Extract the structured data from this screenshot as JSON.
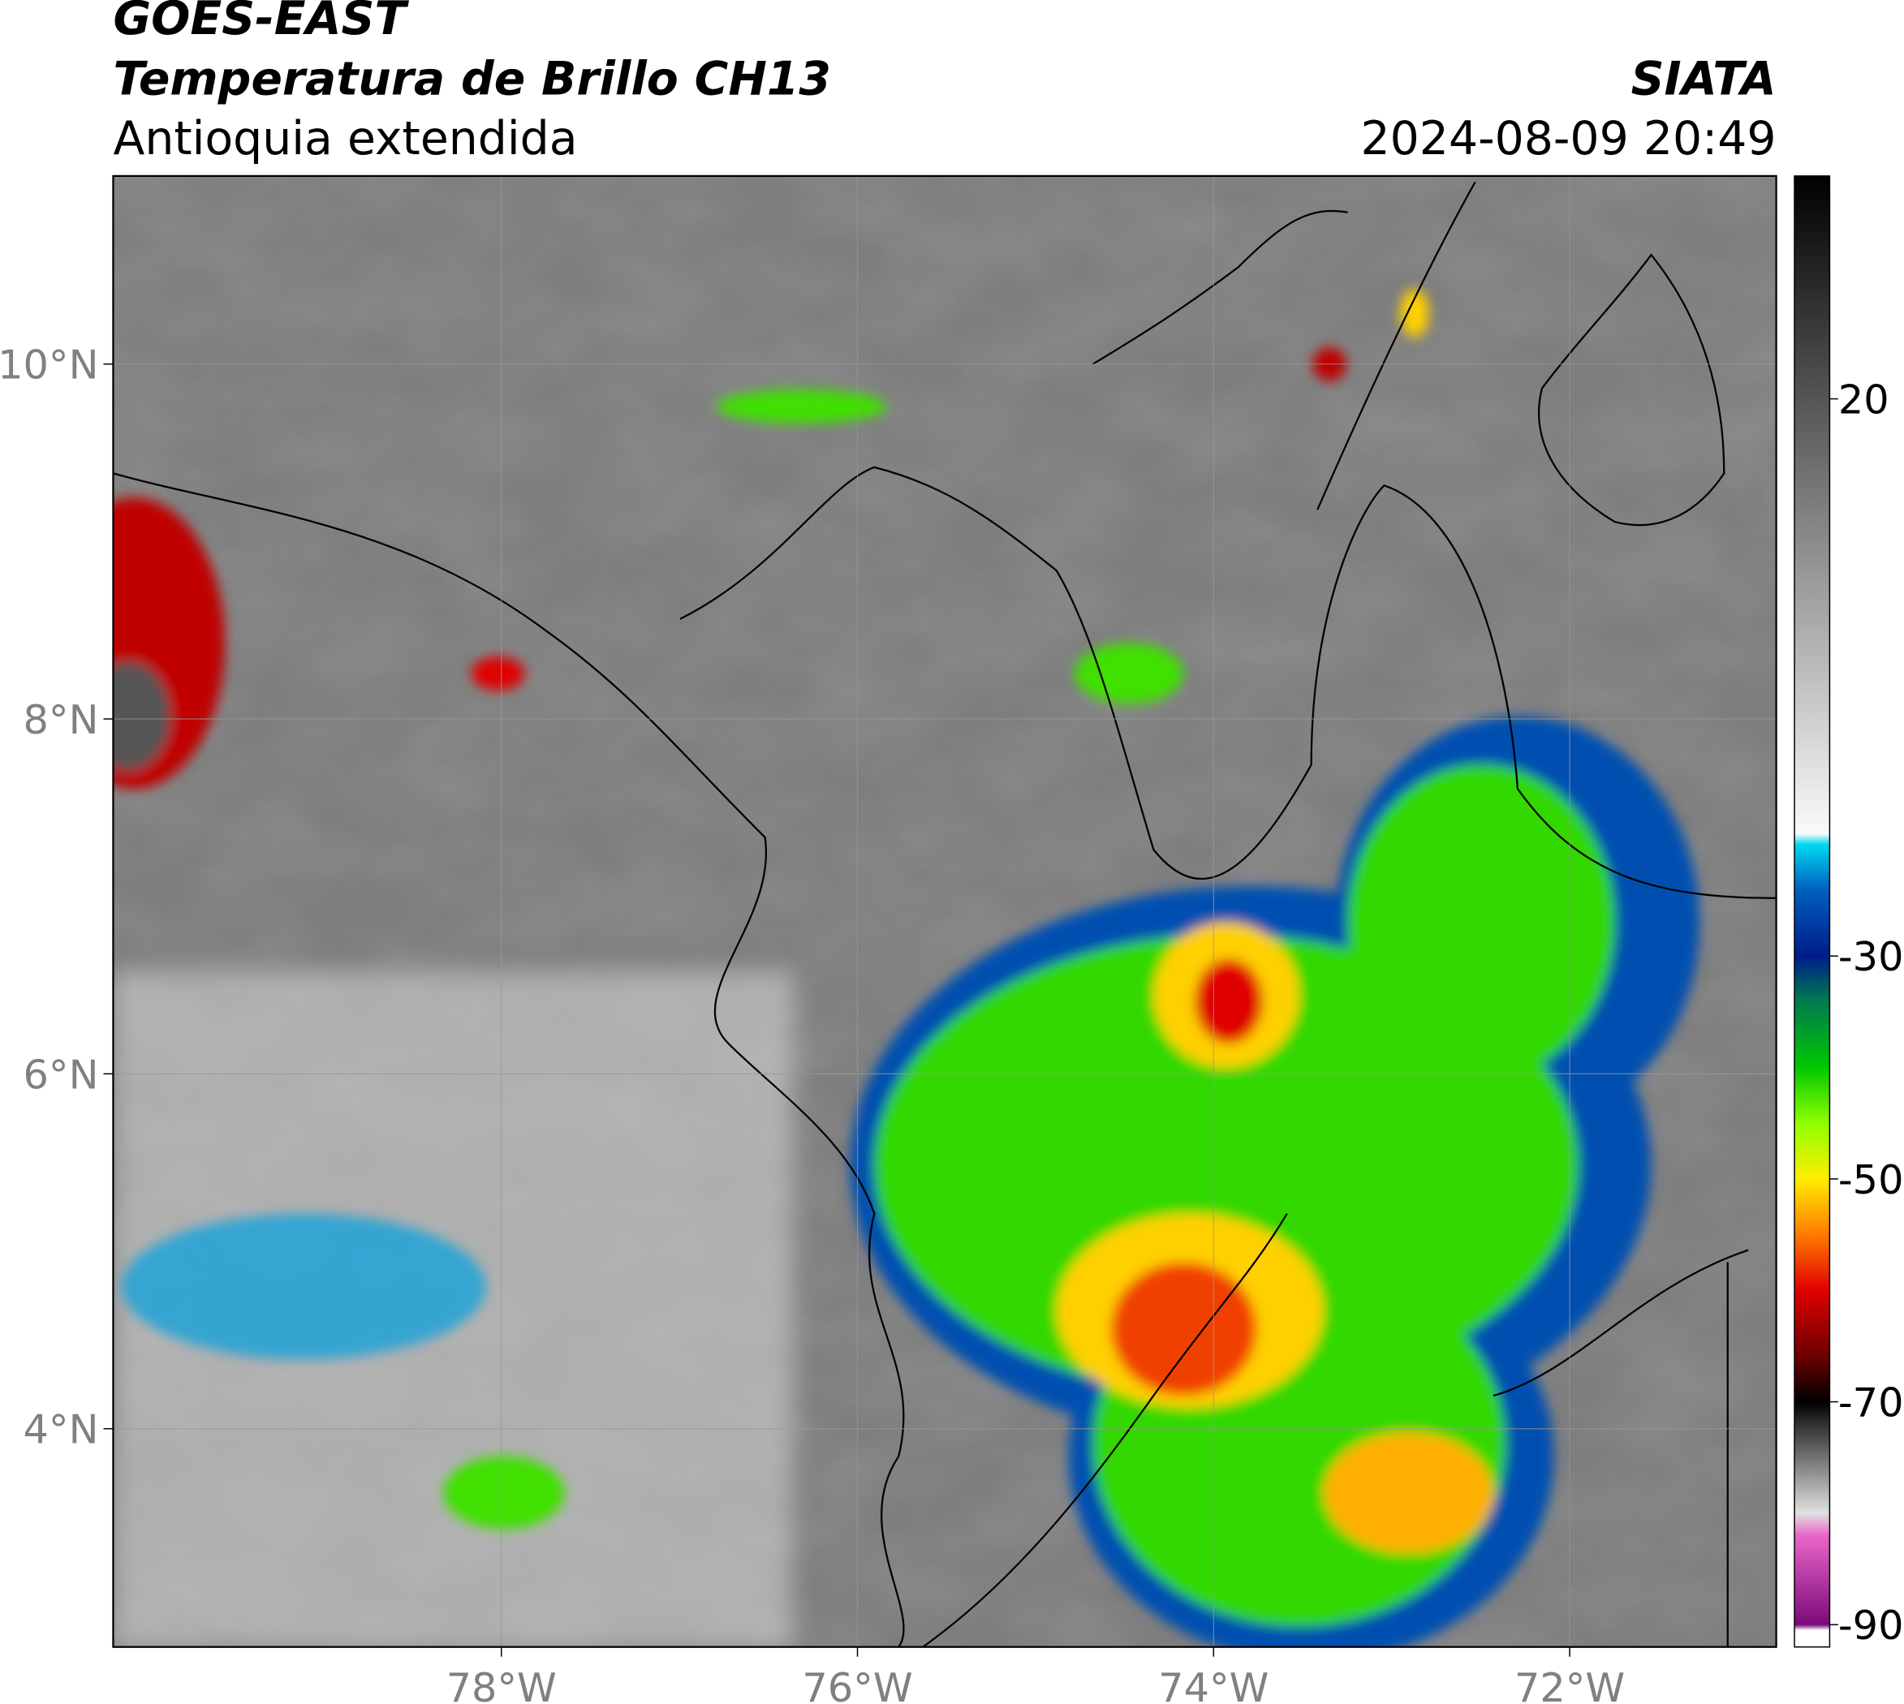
{
  "header": {
    "title": "GOES-EAST",
    "subtitle": "Temperatura de Brillo CH13",
    "region": "Antioquia extendida",
    "source": "SIATA",
    "timestamp": "2024-08-09 20:49"
  },
  "map": {
    "xlim": [
      -80.18,
      -70.84
    ],
    "ylim": [
      2.77,
      11.06
    ],
    "xticks": [
      {
        "value": -78,
        "label": "78°W"
      },
      {
        "value": -76,
        "label": "76°W"
      },
      {
        "value": -74,
        "label": "74°W"
      },
      {
        "value": -72,
        "label": "72°W"
      }
    ],
    "yticks": [
      {
        "value": 4,
        "label": "4°N"
      },
      {
        "value": 6,
        "label": "6°N"
      },
      {
        "value": 8,
        "label": "8°N"
      },
      {
        "value": 10,
        "label": "10°N"
      }
    ],
    "grid": true
  },
  "colorbar": {
    "lim": [
      -92,
      40
    ],
    "ticks": [
      20,
      -30,
      -50,
      -70,
      -90
    ],
    "colorscale": [
      {
        "value": -92,
        "color": "#ffffff"
      },
      {
        "value": -90.5,
        "color": "#ffffff"
      },
      {
        "value": -90,
        "color": "#7a0a7a"
      },
      {
        "value": -82,
        "color": "#e866c8"
      },
      {
        "value": -80,
        "color": "#e0e0e0"
      },
      {
        "value": -72,
        "color": "#303030"
      },
      {
        "value": -70,
        "color": "#000000"
      },
      {
        "value": -66,
        "color": "#6a0000"
      },
      {
        "value": -60,
        "color": "#e00000"
      },
      {
        "value": -55,
        "color": "#ff7a00"
      },
      {
        "value": -50,
        "color": "#ffee00"
      },
      {
        "value": -45,
        "color": "#90ff00"
      },
      {
        "value": -40,
        "color": "#00c800"
      },
      {
        "value": -34,
        "color": "#007a50"
      },
      {
        "value": -30,
        "color": "#001c8a"
      },
      {
        "value": -24,
        "color": "#0060c0"
      },
      {
        "value": -20,
        "color": "#00d8f0"
      },
      {
        "value": -19,
        "color": "#fafafa"
      },
      {
        "value": 40,
        "color": "#000000"
      }
    ]
  }
}
